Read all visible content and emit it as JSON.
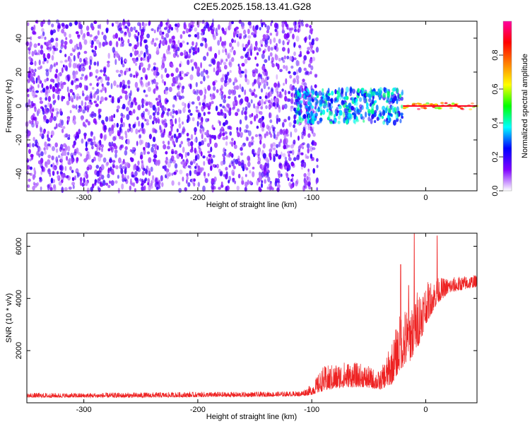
{
  "figure": {
    "title": "C2E5.2025.158.13.41.G28"
  },
  "chart_data": [
    {
      "type": "heatmap",
      "title": "C2E5.2025.158.13.41.G28",
      "xlabel": "Height of straight line (km)",
      "ylabel": "Frequency (Hz)",
      "xlim": [
        -350,
        45
      ],
      "ylim": [
        -50,
        50
      ],
      "x_ticks": [
        "-300",
        "-200",
        "-100",
        "0"
      ],
      "y_ticks": [
        "-40",
        "-20",
        "0",
        "20",
        "40"
      ],
      "colorbar": {
        "label": "Normalized spectral amplitude",
        "range": [
          0,
          1
        ],
        "ticks": [
          "0.0",
          "0.2",
          "0.4",
          "0.6",
          "0.8"
        ],
        "colors": [
          "#ffffff",
          "#7f00ff",
          "#0000ff",
          "#00ffff",
          "#00ff00",
          "#ffff00",
          "#ff8000",
          "#ff0000",
          "#ff00a0"
        ]
      },
      "regions": [
        {
          "x": [
            -350,
            -95
          ],
          "y": [
            -50,
            50
          ],
          "amplitude": [
            0.05,
            0.2
          ]
        },
        {
          "x": [
            -115,
            -20
          ],
          "y": [
            -10,
            10
          ],
          "amplitude": [
            0.2,
            0.45
          ]
        },
        {
          "x": [
            -20,
            45
          ],
          "y": [
            -2,
            2
          ],
          "amplitude": [
            0.5,
            0.95
          ]
        }
      ]
    },
    {
      "type": "line",
      "xlabel": "Height of straight line (km)",
      "ylabel": "SNR (10 * v/v)",
      "xlim": [
        -350,
        45
      ],
      "ylim": [
        0,
        6500
      ],
      "x_ticks": [
        "-300",
        "-200",
        "-100",
        "0"
      ],
      "y_ticks": [
        "2000",
        "4000",
        "6000"
      ],
      "color": "#ee2222",
      "envelope": {
        "x": [
          -350,
          -300,
          -250,
          -200,
          -150,
          -110,
          -100,
          -90,
          -70,
          -55,
          -40,
          -30,
          -22,
          -15,
          -10,
          -5,
          0,
          5,
          10,
          15,
          20,
          30,
          40,
          45
        ],
        "low": [
          200,
          200,
          200,
          220,
          230,
          260,
          300,
          450,
          600,
          600,
          500,
          700,
          1300,
          1500,
          1900,
          2300,
          3000,
          3400,
          3800,
          4000,
          4200,
          4300,
          4400,
          4450
        ],
        "high": [
          380,
          380,
          400,
          420,
          420,
          450,
          700,
          1400,
          1600,
          1500,
          1200,
          2300,
          3500,
          3800,
          4200,
          4500,
          4600,
          4700,
          4800,
          4800,
          4800,
          4850,
          4900,
          4900
        ]
      },
      "spikes": [
        {
          "x": -22,
          "y": 5300
        },
        {
          "x": -15,
          "y": 4500
        },
        {
          "x": -10,
          "y": 6500
        },
        {
          "x": 10,
          "y": 6400
        }
      ]
    }
  ]
}
